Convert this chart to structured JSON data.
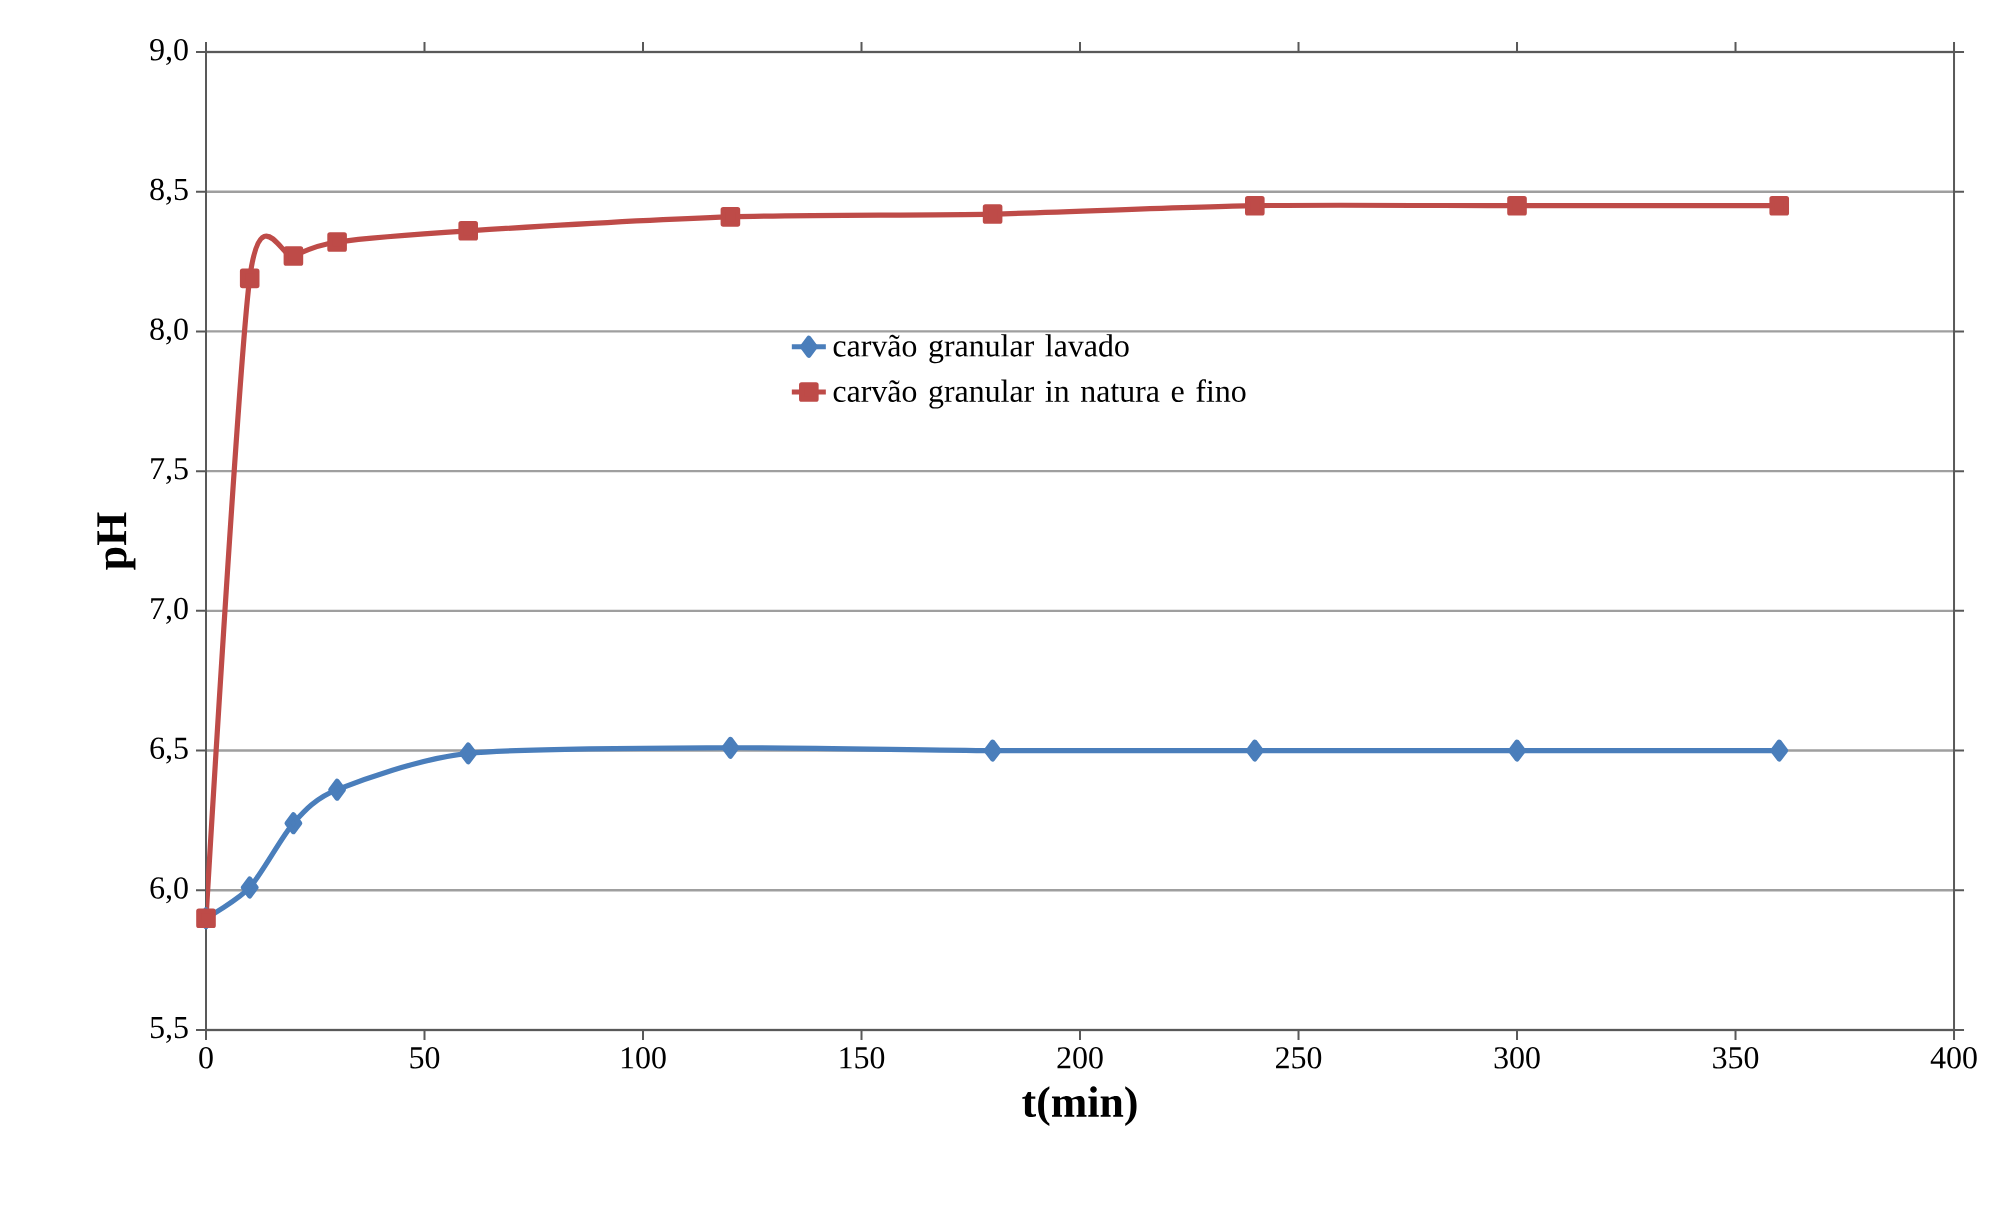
{
  "chart_data": {
    "type": "line",
    "xlabel": "t(min)",
    "ylabel": "pH",
    "x": [
      0,
      10,
      20,
      30,
      60,
      120,
      180,
      240,
      300,
      360
    ],
    "series": [
      {
        "name": "carvão granular lavado",
        "color": "#4a7ebb",
        "marker": "diamond",
        "values": [
          5.9,
          6.01,
          6.24,
          6.36,
          6.49,
          6.51,
          6.5,
          6.5,
          6.5,
          6.5
        ]
      },
      {
        "name": "carvão granular in natura e fino",
        "color": "#be4b48",
        "marker": "square",
        "values": [
          5.9,
          8.19,
          8.27,
          8.32,
          8.36,
          8.41,
          8.42,
          8.45,
          8.45,
          8.45
        ]
      }
    ],
    "xlim": [
      0,
      400
    ],
    "xticks": [
      0,
      50,
      100,
      150,
      200,
      250,
      300,
      350,
      400
    ],
    "ylim": [
      5.5,
      9.0
    ],
    "yticks": [
      {
        "value": 5.5,
        "label": "5,5"
      },
      {
        "value": 6.0,
        "label": "6,0"
      },
      {
        "value": 6.5,
        "label": "6,5"
      },
      {
        "value": 7.0,
        "label": "7,0"
      },
      {
        "value": 7.5,
        "label": "7,5"
      },
      {
        "value": 8.0,
        "label": "8,0"
      },
      {
        "value": 8.5,
        "label": "8,5"
      },
      {
        "value": 9.0,
        "label": "9,0"
      }
    ],
    "grid": "y",
    "legend": "center",
    "line_style": "solid"
  }
}
